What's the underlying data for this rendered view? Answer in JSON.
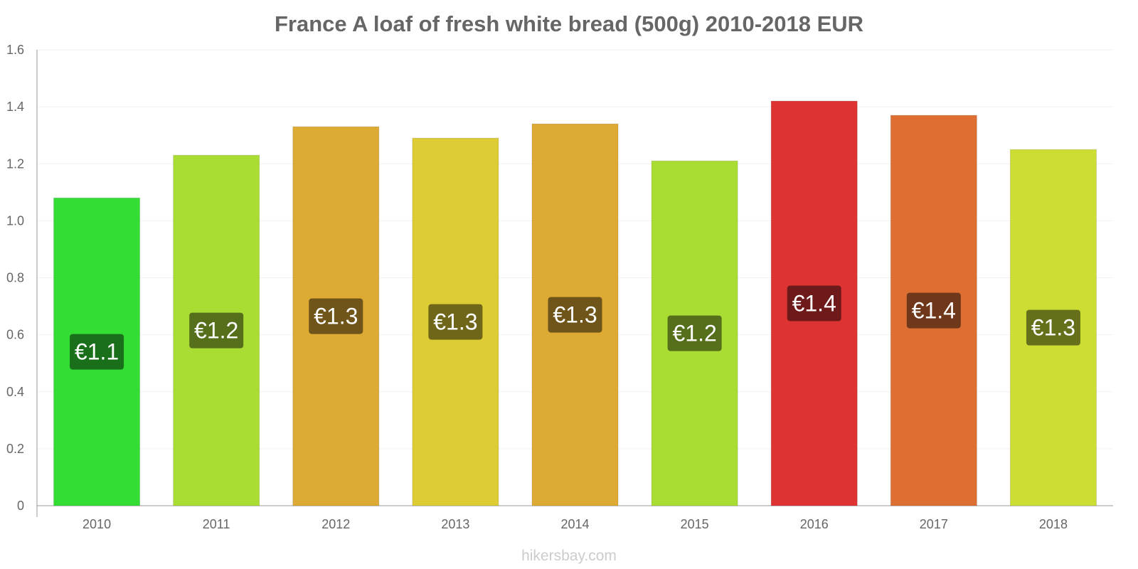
{
  "chart_data": {
    "type": "bar",
    "title": "France A loaf of fresh white bread (500g) 2010-2018 EUR",
    "categories": [
      "2010",
      "2011",
      "2012",
      "2013",
      "2014",
      "2015",
      "2016",
      "2017",
      "2018"
    ],
    "values": [
      1.08,
      1.23,
      1.33,
      1.29,
      1.34,
      1.21,
      1.42,
      1.37,
      1.25
    ],
    "data_labels": [
      "€1.1",
      "€1.2",
      "€1.3",
      "€1.3",
      "€1.3",
      "€1.2",
      "€1.4",
      "€1.4",
      "€1.3"
    ],
    "bar_colors": [
      "#33dd33",
      "#aadd33",
      "#ddaa33",
      "#ddcc33",
      "#ddaa33",
      "#aadd33",
      "#dd3333",
      "#dd6f33",
      "#ccdd33"
    ],
    "label_bg_colors": [
      "#1a701a",
      "#556f1a",
      "#6f551a",
      "#6f661a",
      "#6f551a",
      "#556f1a",
      "#6f1a1a",
      "#6f381a",
      "#666f1a"
    ],
    "ylim": [
      0,
      1.6
    ],
    "yticks": [
      "0",
      "0.2",
      "0.4",
      "0.6",
      "0.8",
      "1.0",
      "1.2",
      "1.4",
      "1.6"
    ],
    "xlabel": "",
    "ylabel": "",
    "grid": true,
    "legend": "none"
  },
  "footer": "hikersbay.com"
}
